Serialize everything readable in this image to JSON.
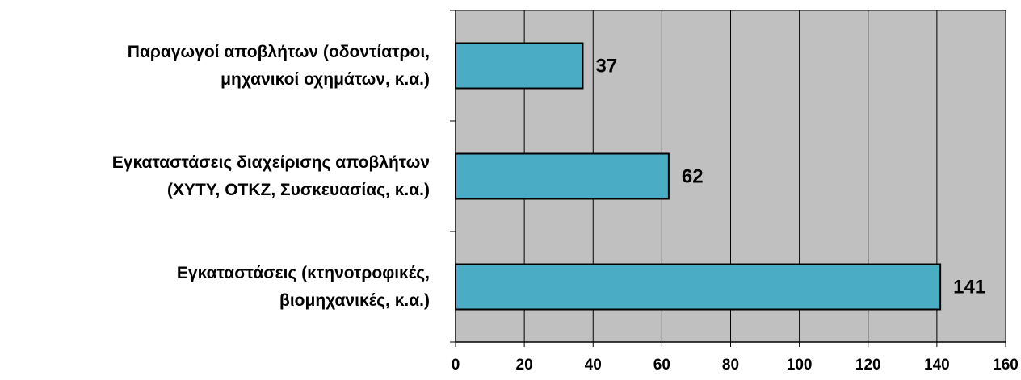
{
  "chart_data": {
    "type": "bar",
    "orientation": "horizontal",
    "categories": [
      [
        "Παραγωγοί αποβλήτων (οδοντίατροι,",
        "μηχανικοί οχημάτων, κ.α.)"
      ],
      [
        "Εγκαταστάσεις διαχείρισης αποβλήτων",
        "(ΧΥΤΥ, ΟΤΚΖ, Συσκευασίας, κ.α.)"
      ],
      [
        "Εγκαταστάσεις (κτηνοτροφικές,",
        "βιομηχανικές, κ.α.)"
      ]
    ],
    "values": [
      37,
      62,
      141
    ],
    "data_labels": [
      "37",
      "62",
      "141"
    ],
    "xlim": [
      0,
      160
    ],
    "x_ticks": [
      "0",
      "20",
      "40",
      "60",
      "80",
      "100",
      "120",
      "140",
      "160"
    ],
    "grid": true,
    "bar_color": "#4bacc6",
    "plot_background": "#c0c0c0"
  }
}
